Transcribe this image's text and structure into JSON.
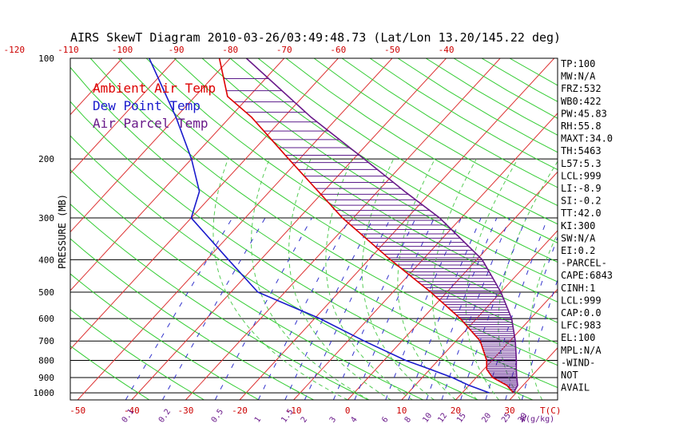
{
  "chart_data": {
    "type": "line",
    "title": "AIRS SkewT Diagram 2010-03-26/03:49:48.73 (Lat/Lon 13.20/145.22 deg)",
    "ylabel": "PRESSURE (MB)",
    "xlabel": "T(C)",
    "mixing_label": "W(g/kg)",
    "pressure_ticks": [
      100,
      200,
      300,
      400,
      500,
      600,
      700,
      800,
      900,
      1000
    ],
    "temp_ticks_top": [
      "-120",
      "-110",
      "-100",
      "-90",
      "-80",
      "-70",
      "-60",
      "-50",
      "-40"
    ],
    "temp_ticks_bottom": [
      "-50",
      "-40",
      "-30",
      "-20",
      "-10",
      "0",
      "10",
      "20",
      "30"
    ],
    "mixing_ratio_ticks": [
      "0.1",
      "0.2",
      "0.5",
      "1",
      "1.5",
      "2",
      "3",
      "4",
      "6",
      "8",
      "10",
      "12",
      "15",
      "20",
      "25",
      "30"
    ],
    "legend": [
      {
        "name": "Ambient Air Temp",
        "color": "#dd0000"
      },
      {
        "name": "Dew Point Temp",
        "color": "#1a1acc"
      },
      {
        "name": "Air Parcel Temp",
        "color": "#6a1a8a"
      }
    ],
    "series": [
      {
        "name": "Ambient Air Temp",
        "points": [
          [
            1000,
            29.5
          ],
          [
            950,
            27
          ],
          [
            900,
            23
          ],
          [
            850,
            20.5
          ],
          [
            800,
            19
          ],
          [
            700,
            14.5
          ],
          [
            600,
            7
          ],
          [
            500,
            -3
          ],
          [
            400,
            -16
          ],
          [
            300,
            -32
          ],
          [
            250,
            -41
          ],
          [
            200,
            -52
          ],
          [
            150,
            -66
          ],
          [
            130,
            -74
          ],
          [
            100,
            -82
          ]
        ]
      },
      {
        "name": "Dew Point Temp",
        "points": [
          [
            1000,
            25
          ],
          [
            950,
            20
          ],
          [
            900,
            15.5
          ],
          [
            850,
            10
          ],
          [
            800,
            4
          ],
          [
            700,
            -7
          ],
          [
            600,
            -19
          ],
          [
            500,
            -35
          ],
          [
            400,
            -46
          ],
          [
            300,
            -60
          ],
          [
            250,
            -63
          ],
          [
            200,
            -70
          ],
          [
            150,
            -80
          ],
          [
            100,
            -95
          ]
        ]
      },
      {
        "name": "Air Parcel Temp",
        "points": [
          [
            1000,
            29.5
          ],
          [
            950,
            29
          ],
          [
            900,
            27.5
          ],
          [
            850,
            26
          ],
          [
            800,
            24.5
          ],
          [
            700,
            21
          ],
          [
            600,
            16.5
          ],
          [
            500,
            10
          ],
          [
            400,
            1
          ],
          [
            300,
            -14
          ],
          [
            250,
            -25
          ],
          [
            200,
            -38
          ],
          [
            150,
            -55
          ],
          [
            100,
            -77
          ]
        ]
      }
    ],
    "indices": [
      "TP:100",
      "MW:N/A",
      "FRZ:532",
      "WB0:422",
      "PW:45.83",
      "RH:55.8",
      "MAXT:34.0",
      "TH:5463",
      "L57:5.3",
      "LCL:999",
      "LI:-8.9",
      "SI:-0.2",
      "TT:42.0",
      "KI:300",
      "SW:N/A",
      "EI:0.2",
      "-PARCEL-",
      "CAPE:6843",
      "CINH:1",
      "LCL:999",
      "CAP:0.0",
      "LFC:983",
      "EL:100",
      "MPL:N/A",
      "-WIND-",
      "NOT",
      "AVAIL"
    ],
    "colors": {
      "grid": "#000000",
      "isotherm": "#dd3333",
      "dry_adiabat": "#33cc33",
      "moist_adiabat": "#55cc55",
      "mixing": "#3333cc",
      "hatch": "#5a1a8a",
      "border": "#000000"
    }
  }
}
